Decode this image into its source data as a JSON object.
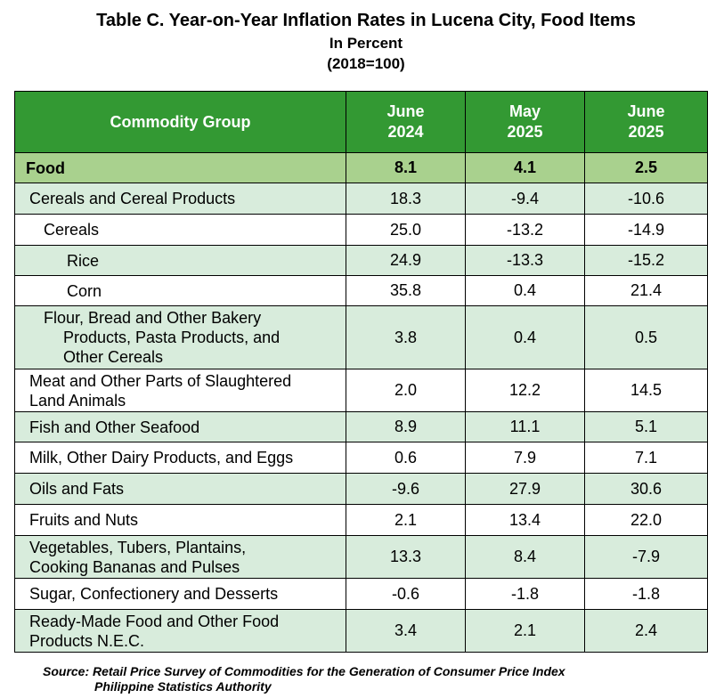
{
  "title": {
    "line1": "Table C. Year-on-Year Inflation Rates in Lucena City, Food Items",
    "line2": "In Percent",
    "line3": "(2018=100)"
  },
  "table": {
    "header": {
      "col1": "Commodity Group",
      "col2_a": "June",
      "col2_b": "2024",
      "col3_a": "May",
      "col3_b": "2025",
      "col4_a": "June",
      "col4_b": "2025"
    },
    "rows": [
      {
        "label": "Food",
        "v1": "8.1",
        "v2": "4.1",
        "v3": "2.5"
      },
      {
        "label": "Cereals and Cereal Products",
        "v1": "18.3",
        "v2": "-9.4",
        "v3": "-10.6"
      },
      {
        "label": "Cereals",
        "v1": "25.0",
        "v2": "-13.2",
        "v3": "-14.9"
      },
      {
        "label": "Rice",
        "v1": "24.9",
        "v2": "-13.3",
        "v3": "-15.2"
      },
      {
        "label": "Corn",
        "v1": "35.8",
        "v2": "0.4",
        "v3": "21.4"
      },
      {
        "label_a": "Flour, Bread and Other Bakery",
        "label_b": "Products, Pasta Products, and",
        "label_c": "Other Cereals",
        "v1": "3.8",
        "v2": "0.4",
        "v3": "0.5"
      },
      {
        "label_a": "Meat and Other Parts of Slaughtered",
        "label_b": "Land Animals",
        "v1": "2.0",
        "v2": "12.2",
        "v3": "14.5"
      },
      {
        "label": "Fish and Other Seafood",
        "v1": "8.9",
        "v2": "11.1",
        "v3": "5.1"
      },
      {
        "label": "Milk, Other Dairy Products, and Eggs",
        "v1": "0.6",
        "v2": "7.9",
        "v3": "7.1"
      },
      {
        "label": "Oils and Fats",
        "v1": "-9.6",
        "v2": "27.9",
        "v3": "30.6"
      },
      {
        "label": "Fruits and Nuts",
        "v1": "2.1",
        "v2": "13.4",
        "v3": "22.0"
      },
      {
        "label_a": "Vegetables, Tubers, Plantains,",
        "label_b": "Cooking Bananas and Pulses",
        "v1": "13.3",
        "v2": "8.4",
        "v3": "-7.9"
      },
      {
        "label": "Sugar, Confectionery and Desserts",
        "v1": "-0.6",
        "v2": "-1.8",
        "v3": "-1.8"
      },
      {
        "label_a": "Ready-Made Food and Other Food",
        "label_b": "Products N.E.C.",
        "v1": "3.4",
        "v2": "2.1",
        "v3": "2.4"
      }
    ]
  },
  "source": {
    "line1": "Source: Retail Price Survey of Commodities for the Generation of Consumer Price Index",
    "line2": "Philippine Statistics Authority"
  },
  "colors": {
    "header_bg": "#339933",
    "food_row_bg": "#a9d18e",
    "shade_row_bg": "#d8ecdc"
  }
}
